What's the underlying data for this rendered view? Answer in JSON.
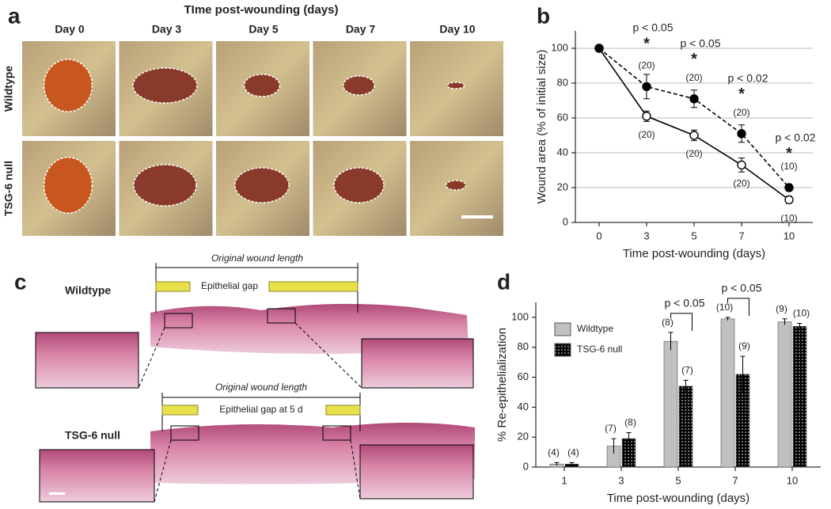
{
  "panel_a": {
    "letter": "a",
    "title": "TIme post-wounding (days)",
    "columns": [
      "Day 0",
      "Day 3",
      "Day 5",
      "Day 7",
      "Day 10"
    ],
    "rows": [
      "Wildtype",
      "TSG-6 null"
    ]
  },
  "chart_data": [
    {
      "type": "line",
      "panel_label": "b",
      "x_label": "Time post-wounding (days)",
      "y_label": "Wound area (% of initial size)",
      "categories": [
        "0",
        "3",
        "5",
        "7",
        "10"
      ],
      "ylim": [
        0,
        110
      ],
      "yticks": [
        0,
        20,
        40,
        60,
        80,
        100
      ],
      "grid": true,
      "series": [
        {
          "name": "Wildtype",
          "color": "#000000",
          "marker_fill": "#ffffff",
          "line_style": "solid",
          "values": [
            100,
            61,
            50,
            33,
            13
          ],
          "errors": [
            null,
            3,
            3,
            4,
            2
          ],
          "n_labels": [
            null,
            "(20)",
            "(20)",
            "(20)",
            "(10)"
          ]
        },
        {
          "name": "TSG-6 null",
          "color": "#000000",
          "marker_fill": "#000000",
          "line_style": "dashed",
          "values": [
            100,
            78,
            71,
            51,
            20
          ],
          "errors": [
            null,
            7,
            5,
            5,
            2
          ],
          "n_labels": [
            null,
            "(20)",
            "(20)",
            "(20)",
            "(10)"
          ]
        }
      ],
      "significance": [
        null,
        "p < 0.05",
        "p < 0.05",
        "p < 0.02",
        "p < 0.02"
      ],
      "stars": [
        null,
        "*",
        "*",
        "*",
        "*"
      ]
    },
    {
      "type": "bar",
      "panel_label": "d",
      "x_label": "Time post-wounding  (days)",
      "y_label": "% Re-epithelialization",
      "categories": [
        "1",
        "3",
        "5",
        "7",
        "10"
      ],
      "ylim": [
        0,
        110
      ],
      "yticks": [
        0,
        20,
        40,
        60,
        80,
        100
      ],
      "legend": "upper left",
      "series": [
        {
          "name": "Wildtype",
          "color": "#c0c0c0",
          "values": [
            2,
            14,
            84,
            99,
            97
          ],
          "errors": [
            1,
            5,
            6,
            1,
            2
          ],
          "n_labels": [
            "(4)",
            "(7)",
            "(8)",
            "(10)",
            "(9)"
          ]
        },
        {
          "name": "TSG-6 null",
          "color": "#000000",
          "pattern": "dots",
          "values": [
            2,
            19,
            54,
            62,
            94
          ],
          "errors": [
            1,
            4,
            4,
            12,
            2
          ],
          "n_labels": [
            "(4)",
            "(8)",
            "(7)",
            "(9)",
            "(10)"
          ]
        }
      ],
      "significance": [
        null,
        null,
        "p < 0.05",
        "p < 0.05",
        null
      ]
    }
  ],
  "panel_c": {
    "letter": "c",
    "sections": [
      {
        "label": "Wildtype",
        "span_label": "Original wound length",
        "gap_label": "Epithelial gap"
      },
      {
        "label": "TSG-6 null",
        "span_label": "Original wound length",
        "gap_label": "Epithelial gap at 5 d"
      }
    ]
  }
}
